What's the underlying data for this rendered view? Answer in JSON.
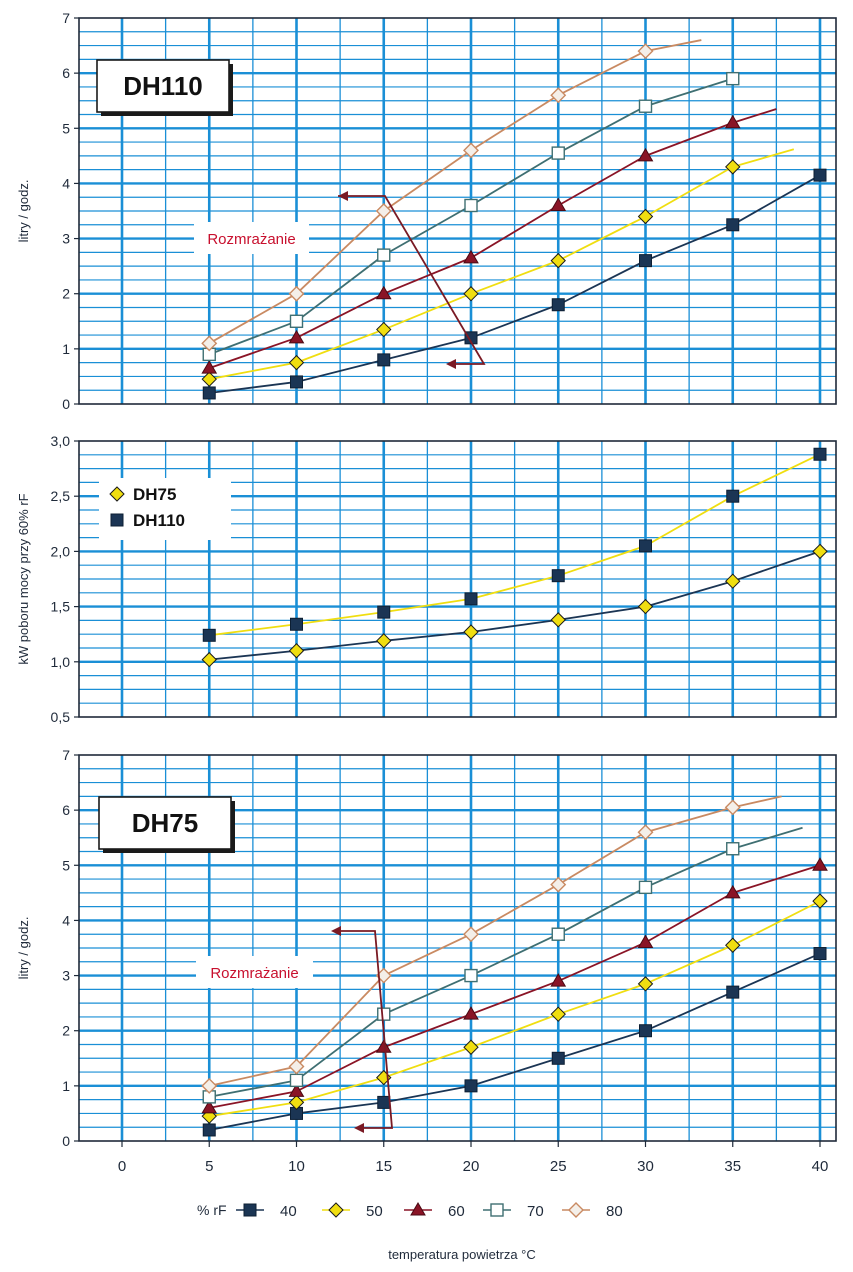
{
  "colors": {
    "grid": "#1a8fd6",
    "frame": "#1f2a3a",
    "40": "#1b3554",
    "50": "#f0de10",
    "60": "#8a1426",
    "70": "#3f6f72",
    "80": "#c98a62",
    "annotation": "#c8102e",
    "arrow": "#7a1a24"
  },
  "x_ticks": [
    "0",
    "5",
    "10",
    "15",
    "20",
    "25",
    "30",
    "35",
    "40"
  ],
  "xlabel": "temperatura powietrza °C",
  "rf_legend": {
    "prefix": "% rF",
    "items": [
      {
        "label": "40",
        "marker": "square",
        "series": "40"
      },
      {
        "label": "50",
        "marker": "diamond",
        "series": "50"
      },
      {
        "label": "60",
        "marker": "triangle",
        "series": "60"
      },
      {
        "label": "70",
        "marker": "open-square",
        "series": "70"
      },
      {
        "label": "80",
        "marker": "open-diamond",
        "series": "80"
      }
    ]
  },
  "chart_data": [
    {
      "type": "line",
      "title": "DH110",
      "ylabel": "litry / godz.",
      "xlim": [
        0,
        40
      ],
      "ylim": [
        0,
        7
      ],
      "y_ticks": [
        "0",
        "1",
        "2",
        "3",
        "4",
        "5",
        "6",
        "7"
      ],
      "annotation": "Rozmrażanie",
      "series": [
        {
          "name": "40",
          "marker": "square",
          "x": [
            5,
            10,
            15,
            20,
            25,
            30,
            35,
            40
          ],
          "values": [
            0.2,
            0.4,
            0.8,
            1.2,
            1.8,
            2.6,
            3.25,
            4.15
          ]
        },
        {
          "name": "50",
          "marker": "diamond",
          "x": [
            5,
            10,
            15,
            20,
            25,
            30,
            35
          ],
          "values": [
            0.45,
            0.75,
            1.35,
            2.0,
            2.6,
            3.4,
            4.3
          ],
          "tail": [
            38.5,
            4.62
          ]
        },
        {
          "name": "60",
          "marker": "triangle",
          "x": [
            5,
            10,
            15,
            20,
            25,
            30,
            35
          ],
          "values": [
            0.65,
            1.2,
            2.0,
            2.65,
            3.6,
            4.5,
            5.1
          ],
          "tail": [
            37.5,
            5.35
          ]
        },
        {
          "name": "70",
          "marker": "open-square",
          "x": [
            5,
            10,
            15,
            20,
            25,
            30,
            35
          ],
          "values": [
            0.9,
            1.5,
            2.7,
            3.6,
            4.55,
            5.4,
            5.9
          ]
        },
        {
          "name": "80",
          "marker": "open-diamond",
          "x": [
            5,
            10,
            15,
            20,
            25,
            30
          ],
          "values": [
            1.1,
            2.0,
            3.5,
            4.6,
            5.6,
            6.4
          ],
          "tail": [
            33.2,
            6.6
          ]
        }
      ]
    },
    {
      "type": "line",
      "ylabel": "kW poboru mocy przy 60% rF",
      "xlim": [
        0,
        40
      ],
      "ylim": [
        0.5,
        3.0
      ],
      "y_ticks": [
        "0,5",
        "1,0",
        "1,5",
        "2,0",
        "2,5",
        "3,0"
      ],
      "legend": [
        {
          "label": "DH75",
          "marker": "diamond"
        },
        {
          "label": "DH110",
          "marker": "square"
        }
      ],
      "series": [
        {
          "name": "DH75",
          "marker": "diamond",
          "x": [
            5,
            10,
            15,
            20,
            25,
            30,
            35,
            40
          ],
          "values": [
            1.02,
            1.1,
            1.19,
            1.27,
            1.38,
            1.5,
            1.73,
            2.0
          ]
        },
        {
          "name": "DH110",
          "marker": "square",
          "x": [
            5,
            10,
            15,
            20,
            25,
            30,
            35,
            40
          ],
          "values": [
            1.24,
            1.34,
            1.45,
            1.57,
            1.78,
            2.05,
            2.5,
            2.88
          ]
        }
      ]
    },
    {
      "type": "line",
      "title": "DH75",
      "ylabel": "litry / godz.",
      "xlim": [
        0,
        40
      ],
      "ylim": [
        0,
        7
      ],
      "y_ticks": [
        "0",
        "1",
        "2",
        "3",
        "4",
        "5",
        "6",
        "7"
      ],
      "annotation": "Rozmrażanie",
      "series": [
        {
          "name": "40",
          "marker": "square",
          "x": [
            5,
            10,
            15,
            20,
            25,
            30,
            35,
            40
          ],
          "values": [
            0.2,
            0.5,
            0.7,
            1.0,
            1.5,
            2.0,
            2.7,
            3.4
          ]
        },
        {
          "name": "50",
          "marker": "diamond",
          "x": [
            5,
            10,
            15,
            20,
            25,
            30,
            35,
            40
          ],
          "values": [
            0.45,
            0.7,
            1.15,
            1.7,
            2.3,
            2.85,
            3.55,
            4.35
          ]
        },
        {
          "name": "60",
          "marker": "triangle",
          "x": [
            5,
            10,
            15,
            20,
            25,
            30,
            35,
            40
          ],
          "values": [
            0.6,
            0.9,
            1.7,
            2.3,
            2.9,
            3.6,
            4.5,
            5.0
          ]
        },
        {
          "name": "70",
          "marker": "open-square",
          "x": [
            5,
            10,
            15,
            20,
            25,
            30,
            35
          ],
          "values": [
            0.8,
            1.1,
            2.3,
            3.0,
            3.75,
            4.6,
            5.3
          ],
          "tail": [
            39.0,
            5.68
          ]
        },
        {
          "name": "80",
          "marker": "open-diamond",
          "x": [
            5,
            10,
            15,
            20,
            25,
            30,
            35
          ],
          "values": [
            1.0,
            1.35,
            3.0,
            3.75,
            4.65,
            5.6,
            6.05
          ],
          "tail": [
            37.8,
            6.25
          ]
        }
      ]
    }
  ]
}
